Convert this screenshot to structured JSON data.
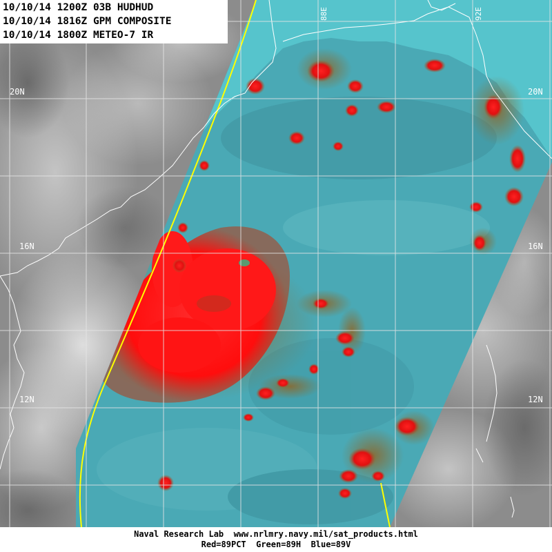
{
  "header": {
    "lines": [
      "10/10/14 1200Z 03B HUDHUD",
      "10/10/14 1816Z GPM COMPOSITE",
      "10/10/14 1800Z METEO-7 IR"
    ]
  },
  "grid": {
    "lat_labels": [
      "20N",
      "16N",
      "12N"
    ],
    "lon_labels": [
      "88E",
      "92E"
    ]
  },
  "footer": {
    "line1": "Naval Research Lab  www.nrlmry.navy.mil/sat_products.html",
    "line2": "Red=89PCT  Green=89H  Blue=89V"
  },
  "colors": {
    "ir_background": "#8a8a8a",
    "swath_cyan": "#4aa9b5",
    "convection_red": "#ff1a1a",
    "swath_edge_yellow": "#ffff00",
    "coastline": "#ffffff"
  }
}
